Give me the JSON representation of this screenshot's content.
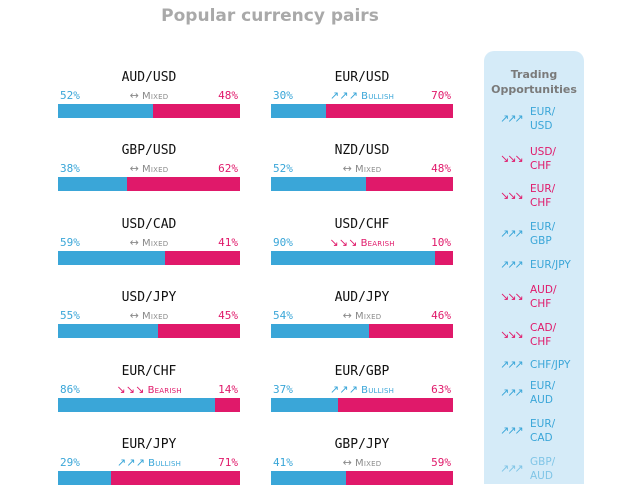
{
  "title": "Popular currency pairs",
  "colors": {
    "long": "#3aa6d8",
    "short": "#e0196a",
    "mixed": "#8a8a8a",
    "panel": "#d5ebf8"
  },
  "pairs": [
    {
      "name": "AUD/USD",
      "left": "52%",
      "right": "48%",
      "sentiment": "Mixed",
      "icon": "double-arrow-icon",
      "long": 0.52,
      "kind": "mixed"
    },
    {
      "name": "EUR/USD",
      "left": "30%",
      "right": "70%",
      "sentiment": "Bullish",
      "icon": "bullish-arrows-icon",
      "long": 0.3,
      "kind": "bull"
    },
    {
      "name": "GBP/USD",
      "left": "38%",
      "right": "62%",
      "sentiment": "Mixed",
      "icon": "double-arrow-icon",
      "long": 0.38,
      "kind": "mixed"
    },
    {
      "name": "NZD/USD",
      "left": "52%",
      "right": "48%",
      "sentiment": "Mixed",
      "icon": "double-arrow-icon",
      "long": 0.52,
      "kind": "mixed"
    },
    {
      "name": "USD/CAD",
      "left": "59%",
      "right": "41%",
      "sentiment": "Mixed",
      "icon": "double-arrow-icon",
      "long": 0.59,
      "kind": "mixed"
    },
    {
      "name": "USD/CHF",
      "left": "90%",
      "right": "10%",
      "sentiment": "Bearish",
      "icon": "bearish-arrows-icon",
      "long": 0.9,
      "kind": "bear"
    },
    {
      "name": "USD/JPY",
      "left": "55%",
      "right": "45%",
      "sentiment": "Mixed",
      "icon": "double-arrow-icon",
      "long": 0.55,
      "kind": "mixed"
    },
    {
      "name": "AUD/JPY",
      "left": "54%",
      "right": "46%",
      "sentiment": "Mixed",
      "icon": "double-arrow-icon",
      "long": 0.54,
      "kind": "mixed"
    },
    {
      "name": "EUR/CHF",
      "left": "86%",
      "right": "14%",
      "sentiment": "Bearish",
      "icon": "bearish-arrows-icon",
      "long": 0.86,
      "kind": "bear"
    },
    {
      "name": "EUR/GBP",
      "left": "37%",
      "right": "63%",
      "sentiment": "Bullish",
      "icon": "bullish-arrows-icon",
      "long": 0.37,
      "kind": "bull"
    },
    {
      "name": "EUR/JPY",
      "left": "29%",
      "right": "71%",
      "sentiment": "Bullish",
      "icon": "bullish-arrows-icon",
      "long": 0.29,
      "kind": "bull"
    },
    {
      "name": "GBP/JPY",
      "left": "41%",
      "right": "59%",
      "sentiment": "Mixed",
      "icon": "double-arrow-icon",
      "long": 0.41,
      "kind": "mixed"
    }
  ],
  "opportunities": {
    "title": "Trading Opportunities",
    "items": [
      {
        "label": "EUR/ USD",
        "kind": "bull",
        "icon": "bullish-arrows-icon"
      },
      {
        "label": "USD/ CHF",
        "kind": "bear",
        "icon": "bearish-arrows-icon"
      },
      {
        "label": "EUR/ CHF",
        "kind": "bear",
        "icon": "bearish-arrows-icon"
      },
      {
        "label": "EUR/ GBP",
        "kind": "bull",
        "icon": "bullish-arrows-icon"
      },
      {
        "label": "EUR/JPY",
        "kind": "bull",
        "icon": "bullish-arrows-icon"
      },
      {
        "label": "AUD/ CHF",
        "kind": "bear",
        "icon": "bearish-arrows-icon"
      },
      {
        "label": "CAD/ CHF",
        "kind": "bear",
        "icon": "bearish-arrows-icon"
      },
      {
        "label": "CHF/JPY",
        "kind": "bull",
        "icon": "bullish-arrows-icon"
      },
      {
        "label": "EUR/ AUD",
        "kind": "bull",
        "icon": "bullish-arrows-icon"
      },
      {
        "label": "EUR/ CAD",
        "kind": "bull",
        "icon": "bullish-arrows-icon"
      },
      {
        "label": "GBP/ AUD",
        "kind": "bull",
        "icon": "bullish-arrows-icon"
      }
    ]
  }
}
